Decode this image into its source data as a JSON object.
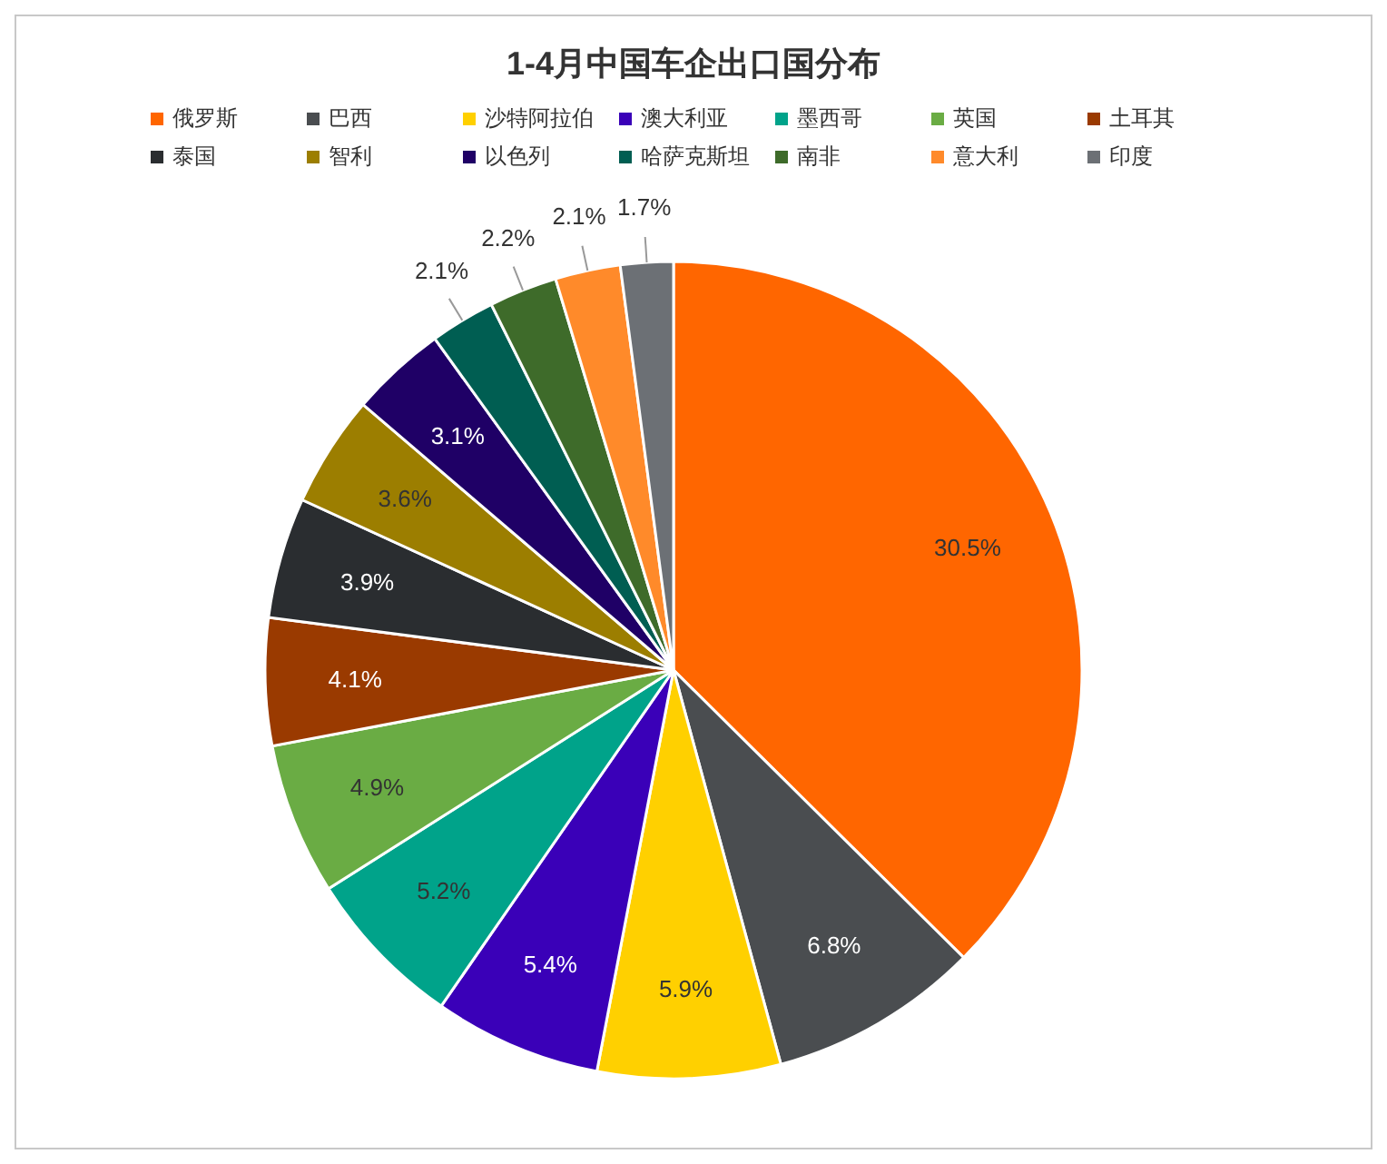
{
  "chart_data": {
    "type": "pie",
    "title": "1-4月中国车企出口国分布",
    "categories": [
      "俄罗斯",
      "巴西",
      "沙特阿拉伯",
      "澳大利亚",
      "墨西哥",
      "英国",
      "土耳其",
      "泰国",
      "智利",
      "以色列",
      "哈萨克斯坦",
      "南非",
      "意大利",
      "印度"
    ],
    "values": [
      30.5,
      6.8,
      5.9,
      5.4,
      5.2,
      4.9,
      4.1,
      3.9,
      3.6,
      3.1,
      2.1,
      2.2,
      2.1,
      1.7
    ],
    "value_labels": [
      "30.5%",
      "6.8%",
      "5.9%",
      "5.4%",
      "5.2%",
      "4.9%",
      "4.1%",
      "3.9%",
      "3.6%",
      "3.1%",
      "2.1%",
      "2.2%",
      "2.1%",
      "1.7%"
    ],
    "colors": [
      "#ff6600",
      "#4a4d50",
      "#ffd000",
      "#3a00b8",
      "#00a38a",
      "#6aac44",
      "#9a3a00",
      "#2a2d30",
      "#9c7e00",
      "#1f0066",
      "#005e52",
      "#3e6b2a",
      "#ff8a2a",
      "#6c7075"
    ],
    "legend": "top"
  }
}
